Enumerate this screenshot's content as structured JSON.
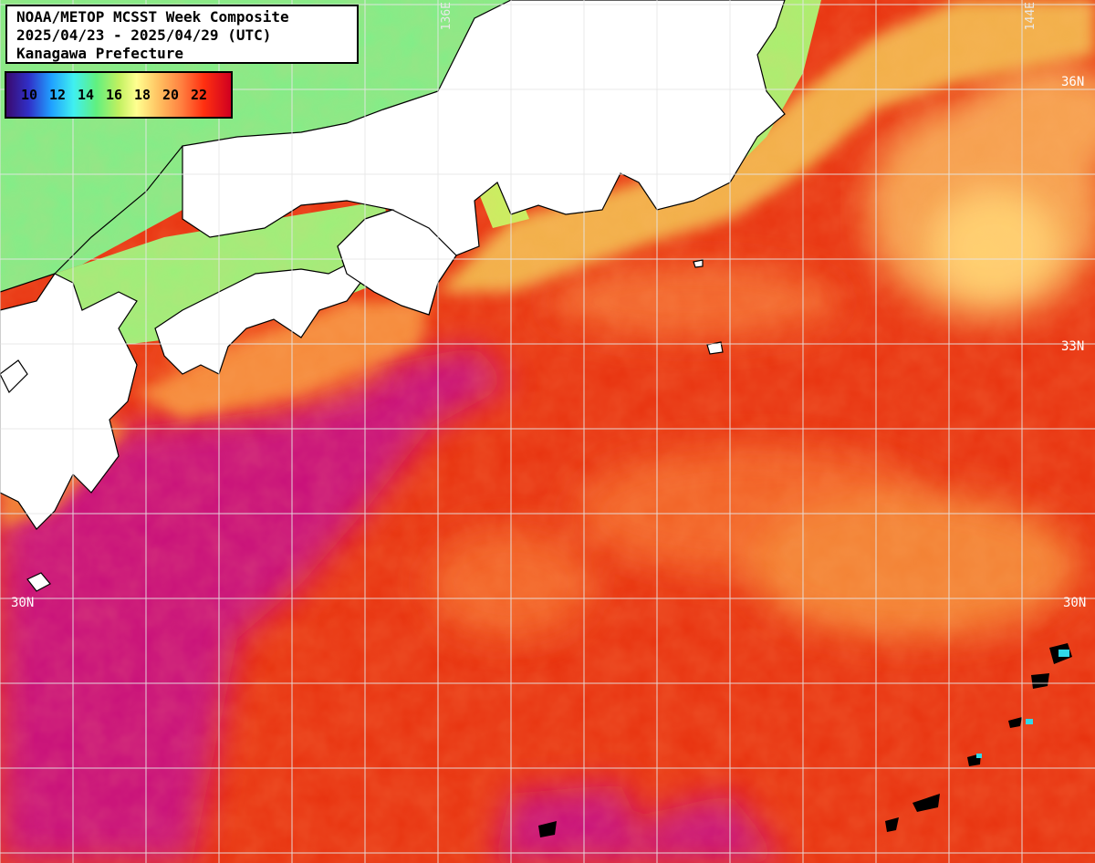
{
  "title": {
    "line1": "NOAA/METOP MCSST Week Composite",
    "line2": "2025/04/23 - 2025/04/29 (UTC)",
    "line3": "Kanagawa Prefecture"
  },
  "legend": {
    "ticks": [
      "10",
      "12",
      "14",
      "16",
      "18",
      "20",
      "22"
    ],
    "colors": [
      "#3a0a6e",
      "#3030c8",
      "#20a0ff",
      "#40f0f0",
      "#60f080",
      "#c0f060",
      "#ffff90",
      "#ffc060",
      "#ff8040",
      "#ff3010",
      "#d00020"
    ]
  },
  "grid_labels": {
    "lon_136": "136E",
    "lon_144": "144E",
    "lat_36": "36N",
    "lat_33": "33N",
    "lat_30_left": "30N",
    "lat_30_right": "30N"
  },
  "colors": {
    "land": "#ffffff",
    "coast": "#000000",
    "grid": "#e6e6e6",
    "sst_warmest": "#c8107a",
    "sst_warm": "#e8320f",
    "sst_mid": "#f46a2a",
    "sst_cool": "#f6a050",
    "sst_cold": "#80f080"
  }
}
